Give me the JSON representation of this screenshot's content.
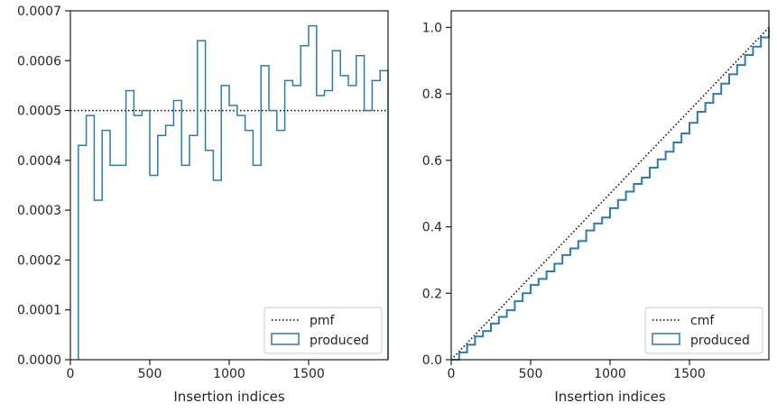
{
  "colors": {
    "step": "#2c7bb0",
    "reference": "#000000",
    "axis": "#262626",
    "legend_border": "#cccccc"
  },
  "chart_data": [
    {
      "type": "line",
      "subtype": "step-histogram",
      "xlabel": "Insertion indices",
      "ylabel": "",
      "xlim": [
        0,
        2000
      ],
      "ylim": [
        0,
        0.0007
      ],
      "x_ticks": [
        0,
        500,
        1000,
        1500
      ],
      "x_tick_labels": [
        "0",
        "500",
        "1000",
        "1500"
      ],
      "y_ticks": [
        0,
        0.0001,
        0.0002,
        0.0003,
        0.0004,
        0.0005,
        0.0006,
        0.0007
      ],
      "y_tick_labels": [
        "0.0000",
        "0.0001",
        "0.0002",
        "0.0003",
        "0.0004",
        "0.0005",
        "0.0006",
        "0.0007"
      ],
      "grid": false,
      "legend_position": "lower-right",
      "series": [
        {
          "name": "pmf",
          "style": "dotted",
          "x": [
            0,
            2000
          ],
          "y": [
            0.0005,
            0.0005
          ]
        },
        {
          "name": "produced",
          "style": "step",
          "bin_edges": [
            50,
            100,
            150,
            200,
            250,
            300,
            350,
            400,
            450,
            500,
            550,
            600,
            650,
            700,
            750,
            800,
            850,
            900,
            950,
            1000,
            1050,
            1100,
            1150,
            1200,
            1250,
            1300,
            1350,
            1400,
            1450,
            1500,
            1550,
            1600,
            1650,
            1700,
            1750,
            1800,
            1850,
            1900,
            1950,
            2000
          ],
          "values": [
            0.00043,
            0.00049,
            0.00032,
            0.00046,
            0.00039,
            0.00039,
            0.00054,
            0.00049,
            0.0005,
            0.00037,
            0.00045,
            0.00047,
            0.00052,
            0.00039,
            0.00045,
            0.00064,
            0.00042,
            0.00036,
            0.00055,
            0.00051,
            0.00049,
            0.00046,
            0.00039,
            0.00059,
            0.0005,
            0.00046,
            0.00056,
            0.00055,
            0.00063,
            0.00067,
            0.00053,
            0.00054,
            0.00062,
            0.00057,
            0.00055,
            0.00061,
            0.0005,
            0.00056,
            0.00058
          ]
        }
      ]
    },
    {
      "type": "line",
      "subtype": "cumulative",
      "xlabel": "Insertion indices",
      "ylabel": "",
      "xlim": [
        0,
        2000
      ],
      "ylim": [
        0,
        1.05
      ],
      "x_ticks": [
        0,
        500,
        1000,
        1500
      ],
      "x_tick_labels": [
        "0",
        "500",
        "1000",
        "1500"
      ],
      "y_ticks": [
        0,
        0.2,
        0.4,
        0.6,
        0.8,
        1.0
      ],
      "y_tick_labels": [
        "0.0",
        "0.2",
        "0.4",
        "0.6",
        "0.8",
        "1.0"
      ],
      "grid": false,
      "legend_position": "lower-right",
      "series": [
        {
          "name": "cmf",
          "style": "dotted",
          "x": [
            0,
            2000
          ],
          "y": [
            0,
            1.0
          ]
        },
        {
          "name": "produced",
          "style": "step",
          "x": [
            0,
            50,
            100,
            150,
            200,
            250,
            300,
            350,
            400,
            450,
            500,
            550,
            600,
            650,
            700,
            750,
            800,
            850,
            900,
            950,
            1000,
            1050,
            1100,
            1150,
            1200,
            1250,
            1300,
            1350,
            1400,
            1450,
            1500,
            1550,
            1600,
            1650,
            1700,
            1750,
            1800,
            1850,
            1900,
            1950,
            2000
          ],
          "y": [
            0,
            0.022,
            0.045,
            0.07,
            0.086,
            0.109,
            0.129,
            0.149,
            0.176,
            0.2,
            0.225,
            0.243,
            0.266,
            0.289,
            0.315,
            0.335,
            0.357,
            0.389,
            0.41,
            0.428,
            0.456,
            0.481,
            0.506,
            0.529,
            0.548,
            0.578,
            0.603,
            0.626,
            0.654,
            0.681,
            0.713,
            0.746,
            0.773,
            0.8,
            0.831,
            0.859,
            0.887,
            0.917,
            0.942,
            0.97,
            1.0
          ]
        }
      ]
    }
  ]
}
